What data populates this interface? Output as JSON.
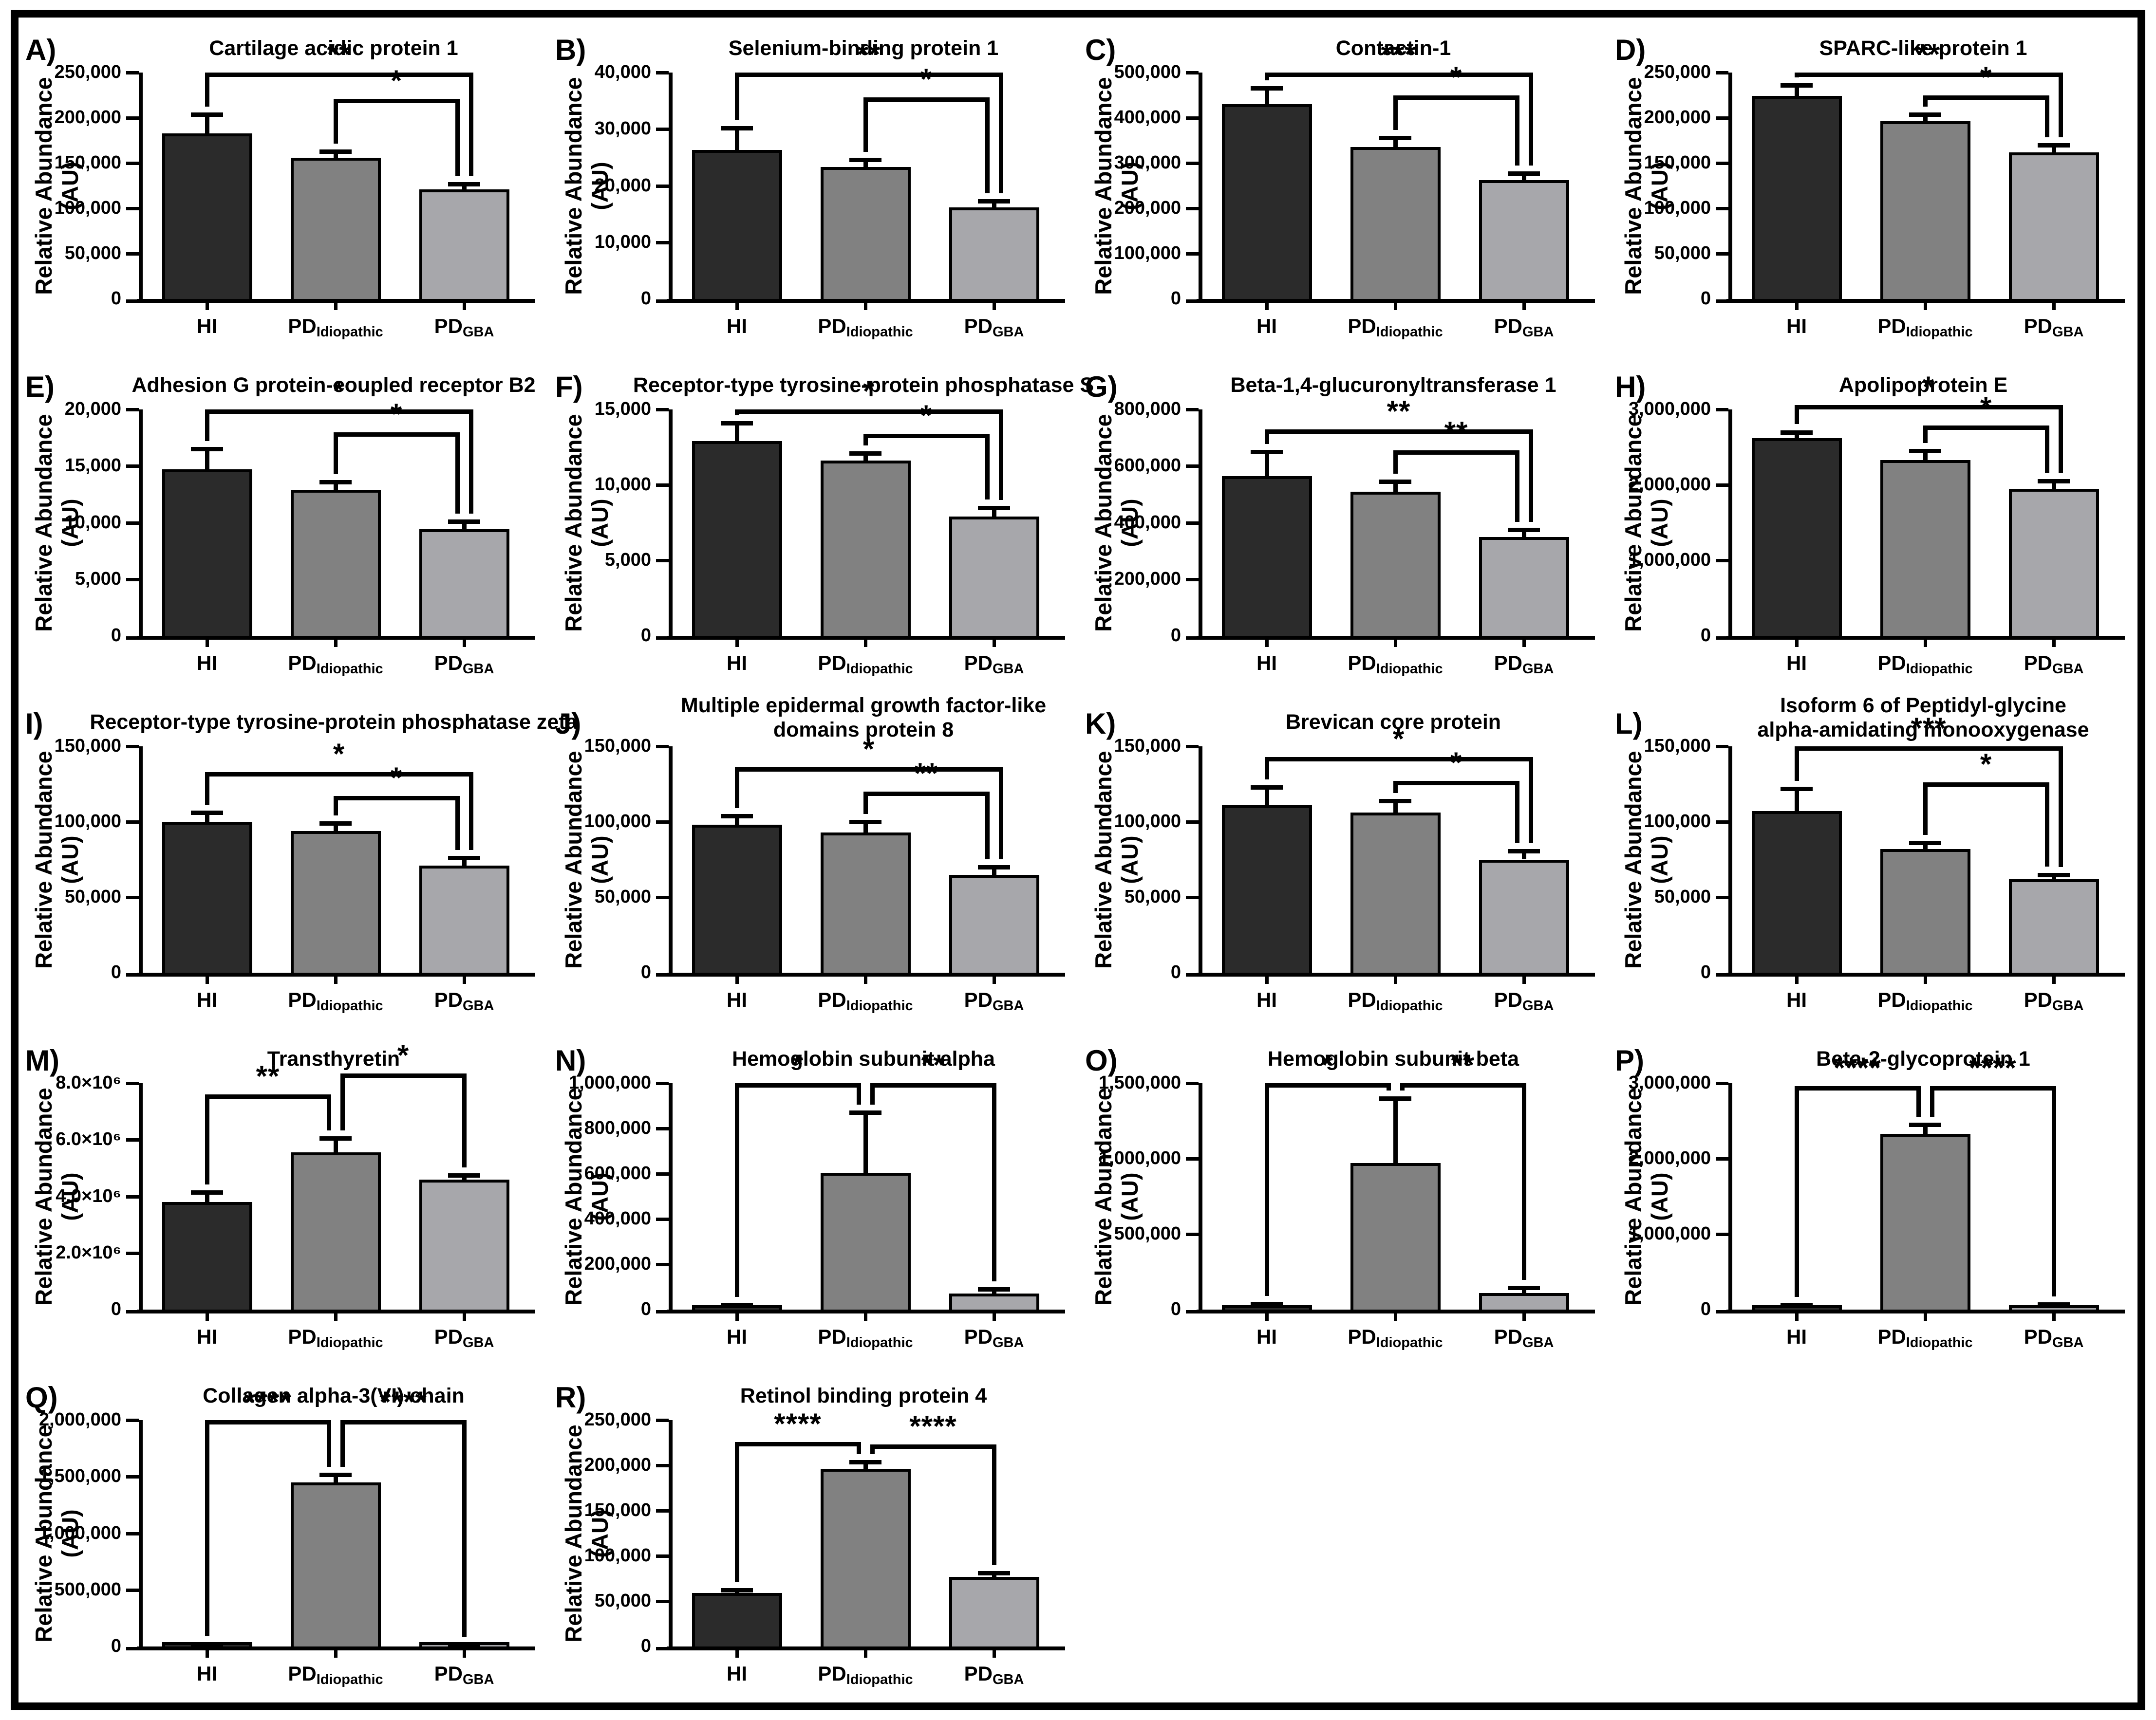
{
  "figure": {
    "ylabel_lines": [
      "Relative Abundance",
      "(AU)"
    ],
    "groups": [
      {
        "main": "HI",
        "sub": ""
      },
      {
        "main": "PD",
        "sub": "Idiopathic"
      },
      {
        "main": "PD",
        "sub": "GBA"
      }
    ],
    "bar_colors": [
      "#2b2b2b",
      "#818181",
      "#a7a7ab"
    ],
    "bar_border_color": "#000000",
    "frame_color": "#000000"
  },
  "chart_data": [
    {
      "id": "A",
      "letter": "A)",
      "type": "bar",
      "row": 0,
      "col": 0,
      "title_lines": [
        "Cartilage acidic protein 1"
      ],
      "categories": [
        "HI",
        "PD_Idiopathic",
        "PD_GBA"
      ],
      "values": [
        183000,
        156000,
        121000
      ],
      "err_top": [
        204000,
        163000,
        127000
      ],
      "ylim": [
        0,
        250000
      ],
      "yticks": [
        0,
        50000,
        100000,
        150000,
        200000,
        250000
      ],
      "ytick_labels": [
        "0",
        "50,000",
        "100,000",
        "150,000",
        "200,000",
        "250,000"
      ],
      "comparisons": [
        {
          "a": 0,
          "b": 2,
          "stars": "**",
          "y": 250000,
          "offb": 14
        },
        {
          "a": 1,
          "b": 2,
          "stars": "*",
          "y": 221000,
          "offb": -14
        }
      ]
    },
    {
      "id": "B",
      "letter": "B)",
      "type": "bar",
      "row": 0,
      "col": 1,
      "title_lines": [
        "Selenium-binding protein 1"
      ],
      "categories": [
        "HI",
        "PD_Idiopathic",
        "PD_GBA"
      ],
      "values": [
        26300,
        23300,
        16200
      ],
      "err_top": [
        30200,
        24600,
        17300
      ],
      "ylim": [
        0,
        40000
      ],
      "yticks": [
        0,
        10000,
        20000,
        30000,
        40000
      ],
      "ytick_labels": [
        "0",
        "10,000",
        "20,000",
        "30,000",
        "40,000"
      ],
      "comparisons": [
        {
          "a": 0,
          "b": 2,
          "stars": "**",
          "y": 40000,
          "offb": 14
        },
        {
          "a": 1,
          "b": 2,
          "stars": "*",
          "y": 35600,
          "offb": -14
        }
      ]
    },
    {
      "id": "C",
      "letter": "C)",
      "type": "bar",
      "row": 0,
      "col": 2,
      "title_lines": [
        "Contactin-1"
      ],
      "categories": [
        "HI",
        "PD_Idiopathic",
        "PD_GBA"
      ],
      "values": [
        430000,
        335000,
        262000
      ],
      "err_top": [
        466000,
        356000,
        277000
      ],
      "ylim": [
        0,
        500000
      ],
      "yticks": [
        0,
        100000,
        200000,
        300000,
        400000,
        500000
      ],
      "ytick_labels": [
        "0",
        "100,000",
        "200,000",
        "300,000",
        "400,000",
        "500,000"
      ],
      "comparisons": [
        {
          "a": 0,
          "b": 2,
          "stars": "***",
          "y": 500000,
          "offb": 14
        },
        {
          "a": 1,
          "b": 2,
          "stars": "*",
          "y": 449000,
          "offb": -14
        }
      ]
    },
    {
      "id": "D",
      "letter": "D)",
      "type": "bar",
      "row": 0,
      "col": 3,
      "title_lines": [
        "SPARC-like protein 1"
      ],
      "categories": [
        "HI",
        "PD_Idiopathic",
        "PD_GBA"
      ],
      "values": [
        224000,
        196000,
        162000
      ],
      "err_top": [
        236000,
        204000,
        170000
      ],
      "ylim": [
        0,
        250000
      ],
      "yticks": [
        0,
        50000,
        100000,
        150000,
        200000,
        250000
      ],
      "ytick_labels": [
        "0",
        "50,000",
        "100,000",
        "150,000",
        "200,000",
        "250,000"
      ],
      "comparisons": [
        {
          "a": 0,
          "b": 2,
          "stars": "**",
          "y": 250000,
          "offb": 14
        },
        {
          "a": 1,
          "b": 2,
          "stars": "*",
          "y": 225000,
          "offb": -14
        }
      ]
    },
    {
      "id": "E",
      "letter": "E)",
      "type": "bar",
      "row": 1,
      "col": 0,
      "title_lines": [
        "Adhesion G protein-coupled receptor B2"
      ],
      "categories": [
        "HI",
        "PD_Idiopathic",
        "PD_GBA"
      ],
      "values": [
        14700,
        12900,
        9400
      ],
      "err_top": [
        16500,
        13600,
        10100
      ],
      "ylim": [
        0,
        20000
      ],
      "yticks": [
        0,
        5000,
        10000,
        15000,
        20000
      ],
      "ytick_labels": [
        "0",
        "5,000",
        "10,000",
        "15,000",
        "20,000"
      ],
      "comparisons": [
        {
          "a": 0,
          "b": 2,
          "stars": "*",
          "y": 20000,
          "offb": 14
        },
        {
          "a": 1,
          "b": 2,
          "stars": "*",
          "y": 18000,
          "offb": -14
        }
      ]
    },
    {
      "id": "F",
      "letter": "F)",
      "type": "bar",
      "row": 1,
      "col": 1,
      "title_lines": [
        "Receptor-type tyrosine-protein phosphatase S"
      ],
      "categories": [
        "HI",
        "PD_Idiopathic",
        "PD_GBA"
      ],
      "values": [
        12900,
        11600,
        7900
      ],
      "err_top": [
        14100,
        12100,
        8500
      ],
      "ylim": [
        0,
        15000
      ],
      "yticks": [
        0,
        5000,
        10000,
        15000
      ],
      "ytick_labels": [
        "0",
        "5,000",
        "10,000",
        "15,000"
      ],
      "comparisons": [
        {
          "a": 0,
          "b": 2,
          "stars": "*",
          "y": 15000,
          "offb": 14
        },
        {
          "a": 1,
          "b": 2,
          "stars": "*",
          "y": 13400,
          "offb": -14
        }
      ]
    },
    {
      "id": "G",
      "letter": "G)",
      "type": "bar",
      "row": 1,
      "col": 2,
      "title_lines": [
        "Beta-1,4-glucuronyltransferase 1"
      ],
      "categories": [
        "HI",
        "PD_Idiopathic",
        "PD_GBA"
      ],
      "values": [
        565000,
        510000,
        350000
      ],
      "err_top": [
        650000,
        545000,
        375000
      ],
      "ylim": [
        0,
        800000
      ],
      "yticks": [
        0,
        200000,
        400000,
        600000,
        800000
      ],
      "ytick_labels": [
        "0",
        "200,000",
        "400,000",
        "600,000",
        "800,000"
      ],
      "comparisons": [
        {
          "a": 0,
          "b": 2,
          "stars": "**",
          "y": 730000,
          "offb": 14
        },
        {
          "a": 1,
          "b": 2,
          "stars": "**",
          "y": 655000,
          "offb": -14
        }
      ]
    },
    {
      "id": "H",
      "letter": "H)",
      "type": "bar",
      "row": 1,
      "col": 3,
      "title_lines": [
        "Apolipoprotein E"
      ],
      "categories": [
        "HI",
        "PD_Idiopathic",
        "PD_GBA"
      ],
      "values": [
        2620000,
        2330000,
        1950000
      ],
      "err_top": [
        2700000,
        2450000,
        2050000
      ],
      "ylim": [
        0,
        3000000
      ],
      "yticks": [
        0,
        1000000,
        2000000,
        3000000
      ],
      "ytick_labels": [
        "0",
        "1,000,000",
        "2,000,000",
        "3,000,000"
      ],
      "comparisons": [
        {
          "a": 0,
          "b": 2,
          "stars": "*",
          "y": 3060000,
          "offb": 14
        },
        {
          "a": 1,
          "b": 2,
          "stars": "*",
          "y": 2790000,
          "offb": -14
        }
      ]
    },
    {
      "id": "I",
      "letter": "I)",
      "type": "bar",
      "row": 2,
      "col": 0,
      "title_lines": [
        "Receptor-type tyrosine-protein phosphatase zeta"
      ],
      "categories": [
        "HI",
        "PD_Idiopathic",
        "PD_GBA"
      ],
      "values": [
        100000,
        94000,
        71000
      ],
      "err_top": [
        106000,
        99000,
        76000
      ],
      "ylim": [
        0,
        150000
      ],
      "yticks": [
        0,
        50000,
        100000,
        150000
      ],
      "ytick_labels": [
        "0",
        "50,000",
        "100,000",
        "150,000"
      ],
      "comparisons": [
        {
          "a": 0,
          "b": 2,
          "stars": "*",
          "y": 133000,
          "offb": 14
        },
        {
          "a": 1,
          "b": 2,
          "stars": "*",
          "y": 117000,
          "offb": -14
        }
      ]
    },
    {
      "id": "J",
      "letter": "J)",
      "type": "bar",
      "row": 2,
      "col": 1,
      "title_lines": [
        "Multiple epidermal growth factor-like",
        "domains protein 8"
      ],
      "categories": [
        "HI",
        "PD_Idiopathic",
        "PD_GBA"
      ],
      "values": [
        98000,
        93000,
        65000
      ],
      "err_top": [
        104000,
        100000,
        70000
      ],
      "ylim": [
        0,
        150000
      ],
      "yticks": [
        0,
        50000,
        100000,
        150000
      ],
      "ytick_labels": [
        "0",
        "50,000",
        "100,000",
        "150,000"
      ],
      "comparisons": [
        {
          "a": 0,
          "b": 2,
          "stars": "*",
          "y": 136000,
          "offb": 14
        },
        {
          "a": 1,
          "b": 2,
          "stars": "**",
          "y": 120000,
          "offb": -14
        }
      ]
    },
    {
      "id": "K",
      "letter": "K)",
      "type": "bar",
      "row": 2,
      "col": 2,
      "title_lines": [
        "Brevican core protein"
      ],
      "categories": [
        "HI",
        "PD_Idiopathic",
        "PD_GBA"
      ],
      "values": [
        111000,
        106000,
        75000
      ],
      "err_top": [
        123000,
        114000,
        80500
      ],
      "ylim": [
        0,
        150000
      ],
      "yticks": [
        0,
        50000,
        100000,
        150000
      ],
      "ytick_labels": [
        "0",
        "50,000",
        "100,000",
        "150,000"
      ],
      "comparisons": [
        {
          "a": 0,
          "b": 2,
          "stars": "*",
          "y": 143000,
          "offb": 14
        },
        {
          "a": 1,
          "b": 2,
          "stars": "*",
          "y": 127000,
          "offb": -14
        }
      ]
    },
    {
      "id": "L",
      "letter": "L)",
      "type": "bar",
      "row": 2,
      "col": 3,
      "title_lines": [
        "Isoform 6 of Peptidyl-glycine",
        "alpha-amidating monooxygenase"
      ],
      "categories": [
        "HI",
        "PD_Idiopathic",
        "PD_GBA"
      ],
      "values": [
        107000,
        82000,
        62000
      ],
      "err_top": [
        122000,
        86000,
        65000
      ],
      "ylim": [
        0,
        150000
      ],
      "yticks": [
        0,
        50000,
        100000,
        150000
      ],
      "ytick_labels": [
        "0",
        "50,000",
        "100,000",
        "150,000"
      ],
      "comparisons": [
        {
          "a": 0,
          "b": 2,
          "stars": "***",
          "y": 150000,
          "offb": 14
        },
        {
          "a": 1,
          "b": 2,
          "stars": "*",
          "y": 126000,
          "offb": -14
        }
      ]
    },
    {
      "id": "M",
      "letter": "M)",
      "type": "bar",
      "row": 3,
      "col": 0,
      "title_lines": [
        "Transthyretin"
      ],
      "categories": [
        "HI",
        "PD_Idiopathic",
        "PD_GBA"
      ],
      "values": [
        3800000,
        5550000,
        4600000
      ],
      "err_top": [
        4150000,
        6050000,
        4750000
      ],
      "ylim": [
        0,
        8000000
      ],
      "yticks": [
        0,
        2000000,
        4000000,
        6000000,
        8000000
      ],
      "ytick_labels": [
        "0",
        "2.0×10⁶",
        "4.0×10⁶",
        "6.0×10⁶",
        "8.0×10⁶"
      ],
      "comparisons": [
        {
          "a": 0,
          "b": 1,
          "stars": "**",
          "y": 7600000,
          "offb": -14
        },
        {
          "a": 1,
          "b": 2,
          "stars": "*",
          "y": 8350000,
          "offa": 14
        }
      ]
    },
    {
      "id": "N",
      "letter": "N)",
      "type": "bar",
      "row": 3,
      "col": 1,
      "title_lines": [
        "Hemoglobin subunit alpha"
      ],
      "categories": [
        "HI",
        "PD_Idiopathic",
        "PD_GBA"
      ],
      "values": [
        15000,
        605000,
        70000
      ],
      "err_top": [
        22000,
        870000,
        90000
      ],
      "ylim": [
        0,
        1000000
      ],
      "yticks": [
        0,
        200000,
        400000,
        600000,
        800000,
        1000000
      ],
      "ytick_labels": [
        "0",
        "200,000",
        "400,000",
        "600,000",
        "800,000",
        "1,000,000"
      ],
      "comparisons": [
        {
          "a": 0,
          "b": 1,
          "stars": "*",
          "y": 1000000,
          "offb": -14
        },
        {
          "a": 1,
          "b": 2,
          "stars": "**",
          "y": 1000000,
          "offa": 14
        }
      ]
    },
    {
      "id": "O",
      "letter": "O)",
      "type": "bar",
      "row": 3,
      "col": 2,
      "title_lines": [
        "Hemoglobin subunit beta"
      ],
      "categories": [
        "HI",
        "PD_Idiopathic",
        "PD_GBA"
      ],
      "values": [
        25000,
        970000,
        110000
      ],
      "err_top": [
        38000,
        1400000,
        145000
      ],
      "ylim": [
        0,
        1500000
      ],
      "yticks": [
        0,
        500000,
        1000000,
        1500000
      ],
      "ytick_labels": [
        "0",
        "500,000",
        "1,000,000",
        "1,500,000"
      ],
      "comparisons": [
        {
          "a": 0,
          "b": 1,
          "stars": "*",
          "y": 1500000,
          "offb": -14
        },
        {
          "a": 1,
          "b": 2,
          "stars": "**",
          "y": 1500000,
          "offa": 14
        }
      ]
    },
    {
      "id": "P",
      "letter": "P)",
      "type": "bar",
      "row": 3,
      "col": 3,
      "title_lines": [
        "Beta-2-glycoprotein 1"
      ],
      "categories": [
        "HI",
        "PD_Idiopathic",
        "PD_GBA"
      ],
      "values": [
        50000,
        2330000,
        55000
      ],
      "err_top": [
        62000,
        2450000,
        68000
      ],
      "ylim": [
        0,
        3000000
      ],
      "yticks": [
        0,
        1000000,
        2000000,
        3000000
      ],
      "ytick_labels": [
        "0",
        "1,000,000",
        "2,000,000",
        "3,000,000"
      ],
      "comparisons": [
        {
          "a": 0,
          "b": 1,
          "stars": "****",
          "y": 2960000,
          "offb": -14
        },
        {
          "a": 1,
          "b": 2,
          "stars": "****",
          "y": 2960000,
          "offa": 14
        }
      ]
    },
    {
      "id": "Q",
      "letter": "Q)",
      "type": "bar",
      "row": 4,
      "col": 0,
      "title_lines": [
        "Collagen alpha-3(VI) chain"
      ],
      "categories": [
        "HI",
        "PD_Idiopathic",
        "PD_GBA"
      ],
      "values": [
        15000,
        1450000,
        12000
      ],
      "err_top": [
        20000,
        1520000,
        16000
      ],
      "ylim": [
        0,
        2000000
      ],
      "yticks": [
        0,
        500000,
        1000000,
        1500000,
        2000000
      ],
      "ytick_labels": [
        "0",
        "500,000",
        "1,000,000",
        "1,500,000",
        "2,000,000"
      ],
      "comparisons": [
        {
          "a": 0,
          "b": 1,
          "stars": "****",
          "y": 2000000,
          "offb": -14
        },
        {
          "a": 1,
          "b": 2,
          "stars": "****",
          "y": 2000000,
          "offa": 14
        }
      ]
    },
    {
      "id": "R",
      "letter": "R)",
      "type": "bar",
      "row": 4,
      "col": 1,
      "title_lines": [
        "Retinol binding protein 4"
      ],
      "categories": [
        "HI",
        "PD_Idiopathic",
        "PD_GBA"
      ],
      "values": [
        59000,
        196000,
        77000
      ],
      "err_top": [
        62500,
        204000,
        81000
      ],
      "ylim": [
        0,
        250000
      ],
      "yticks": [
        0,
        50000,
        100000,
        150000,
        200000,
        250000
      ],
      "ytick_labels": [
        "0",
        "50,000",
        "100,000",
        "150,000",
        "200,000",
        "250,000"
      ],
      "comparisons": [
        {
          "a": 0,
          "b": 1,
          "stars": "****",
          "y": 226000,
          "offb": -14
        },
        {
          "a": 1,
          "b": 2,
          "stars": "****",
          "y": 223000,
          "offa": 14
        }
      ]
    }
  ]
}
